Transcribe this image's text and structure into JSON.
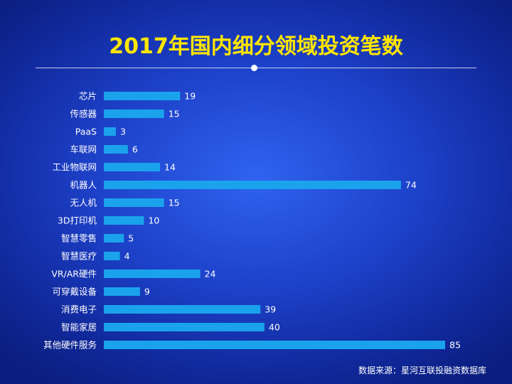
{
  "chart_data": {
    "type": "bar",
    "orientation": "horizontal",
    "title": "2017年国内细分领域投资笔数",
    "categories": [
      "芯片",
      "传感器",
      "PaaS",
      "车联网",
      "工业物联网",
      "机器人",
      "无人机",
      "3D打印机",
      "智慧零售",
      "智慧医疗",
      "VR/AR硬件",
      "可穿戴设备",
      "消费电子",
      "智能家居",
      "其他硬件服务"
    ],
    "values": [
      19,
      15,
      3,
      6,
      14,
      74,
      15,
      10,
      5,
      4,
      24,
      9,
      39,
      40,
      85
    ],
    "xlim": [
      0,
      85
    ],
    "grid": false,
    "data_labels": true,
    "colors": {
      "bar": "#1aa3ec",
      "label": "#ffffff",
      "title": "#ffe600"
    }
  },
  "source": "数据来源：星河互联投融资数据库"
}
